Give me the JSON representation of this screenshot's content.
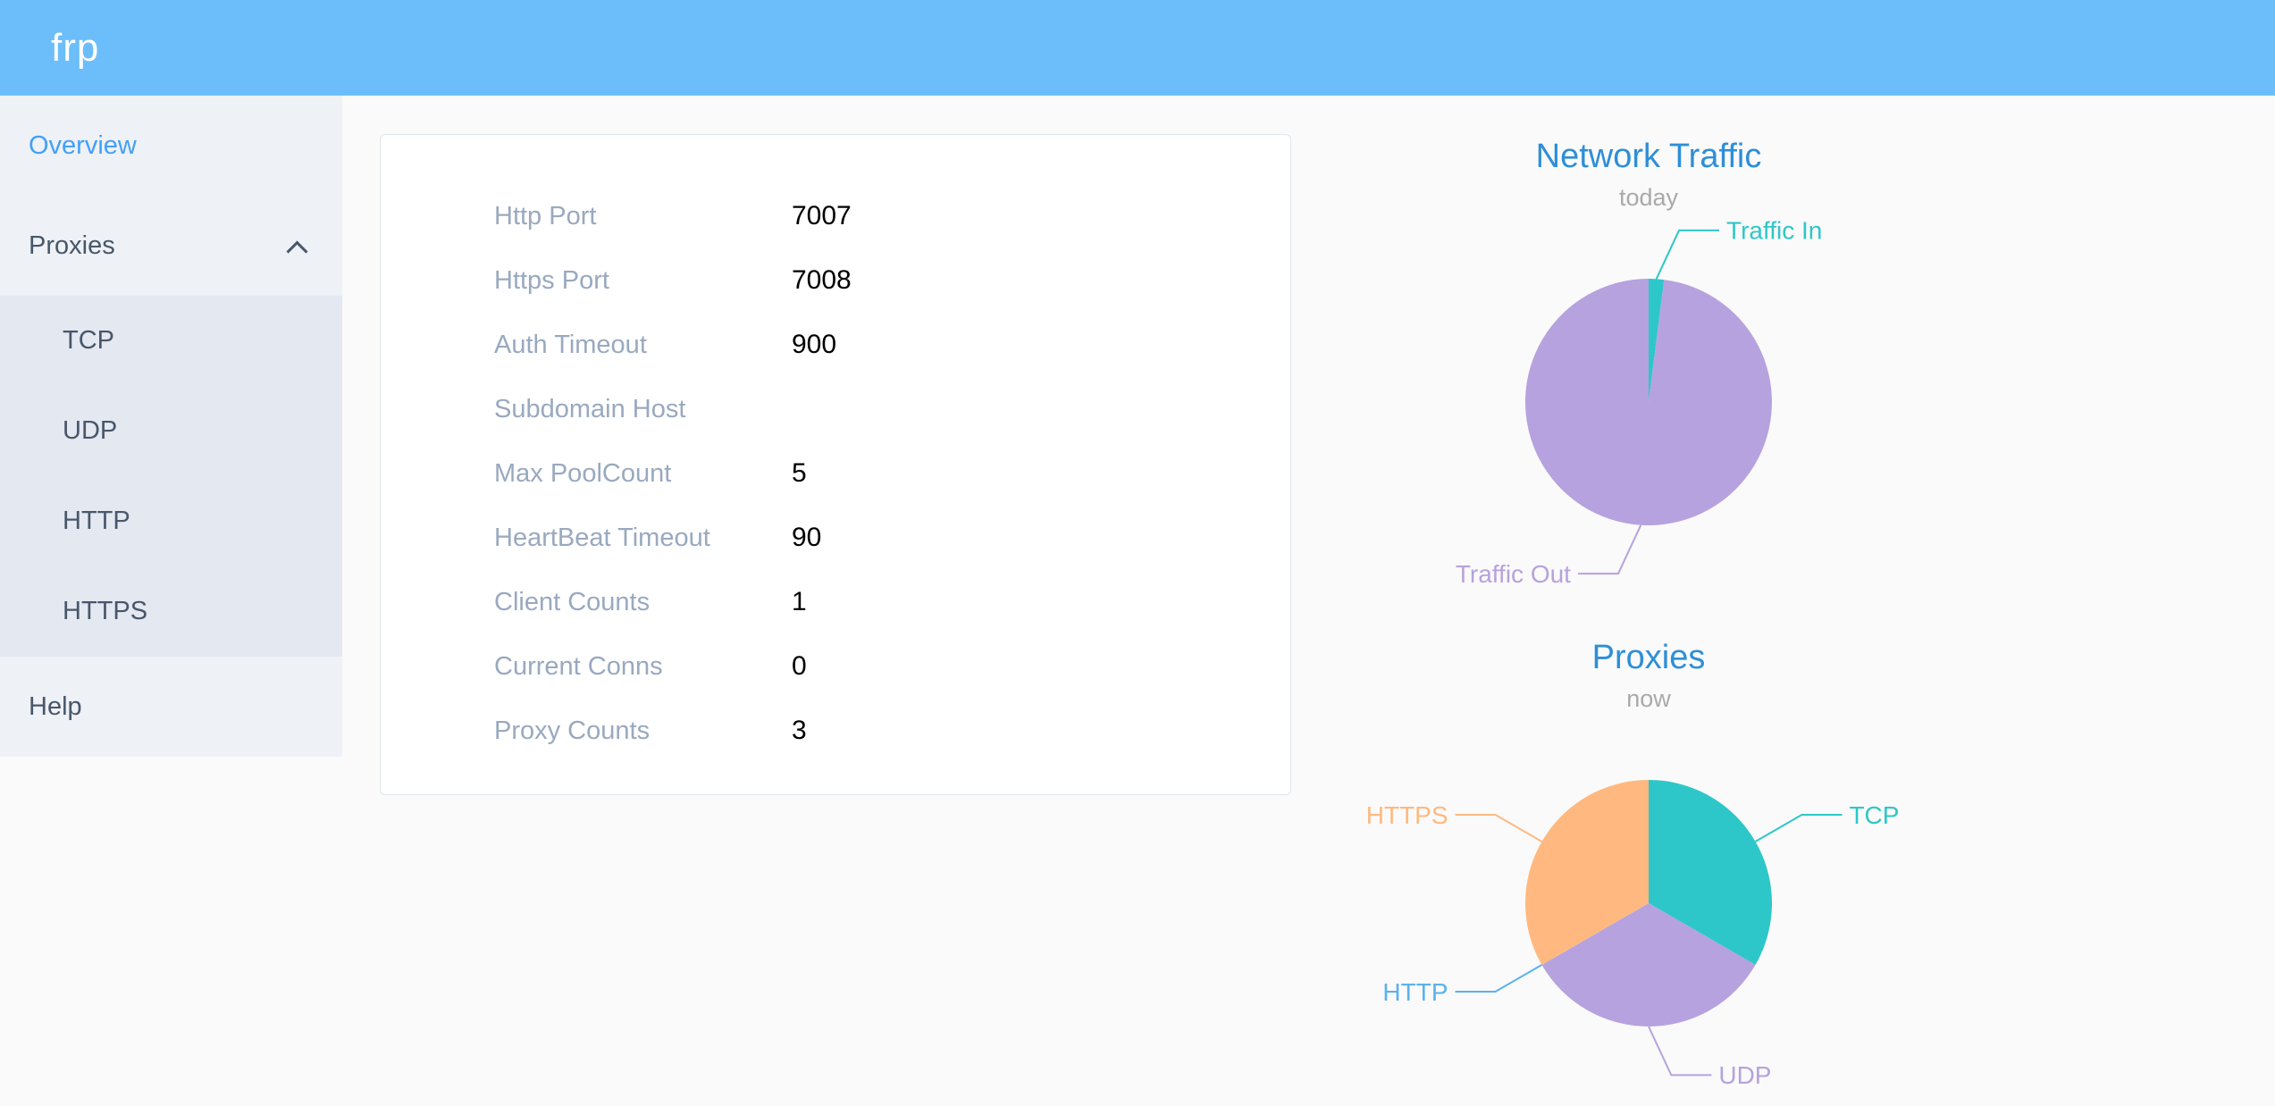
{
  "header": {
    "logo_text": "frp"
  },
  "sidebar": {
    "items": [
      {
        "label": "Overview",
        "active": true
      },
      {
        "label": "Proxies",
        "expanded": true,
        "children": [
          {
            "label": "TCP"
          },
          {
            "label": "UDP"
          },
          {
            "label": "HTTP"
          },
          {
            "label": "HTTPS"
          }
        ]
      },
      {
        "label": "Help"
      }
    ]
  },
  "server_config": {
    "rows": [
      {
        "label": "Http Port",
        "value": "7007"
      },
      {
        "label": "Https Port",
        "value": "7008"
      },
      {
        "label": "Auth Timeout",
        "value": "900"
      },
      {
        "label": "Subdomain Host",
        "value": ""
      },
      {
        "label": "Max PoolCount",
        "value": "5"
      },
      {
        "label": "HeartBeat Timeout",
        "value": "90"
      },
      {
        "label": "Client Counts",
        "value": "1"
      },
      {
        "label": "Current Conns",
        "value": "0"
      },
      {
        "label": "Proxy Counts",
        "value": "3"
      }
    ]
  },
  "chart_data": [
    {
      "type": "pie",
      "title": "Network Traffic",
      "subtitle": "today",
      "legend_position": "none",
      "label_position": "outside",
      "slices": [
        {
          "name": "Traffic In",
          "percent": 2,
          "color": "#2ec7c9"
        },
        {
          "name": "Traffic Out",
          "percent": 98,
          "color": "#b6a2de"
        }
      ]
    },
    {
      "type": "pie",
      "title": "Proxies",
      "subtitle": "now",
      "legend_position": "none",
      "label_position": "outside",
      "slices": [
        {
          "name": "TCP",
          "percent": 33.33,
          "color": "#2ec7c9"
        },
        {
          "name": "UDP",
          "percent": 33.34,
          "color": "#b6a2de"
        },
        {
          "name": "HTTP",
          "percent": 0,
          "color": "#5ab1ef"
        },
        {
          "name": "HTTPS",
          "percent": 33.33,
          "color": "#ffb980"
        }
      ]
    }
  ],
  "colors": {
    "header_bg": "#6bbefa",
    "active_blue": "#42a0f8",
    "chart_title": "#2d8fd8",
    "label_gray": "#99a9bf",
    "sidebar_bg": "#eef1f6",
    "submenu_bg": "#e4e8f1",
    "main_bg": "#fafafa"
  }
}
